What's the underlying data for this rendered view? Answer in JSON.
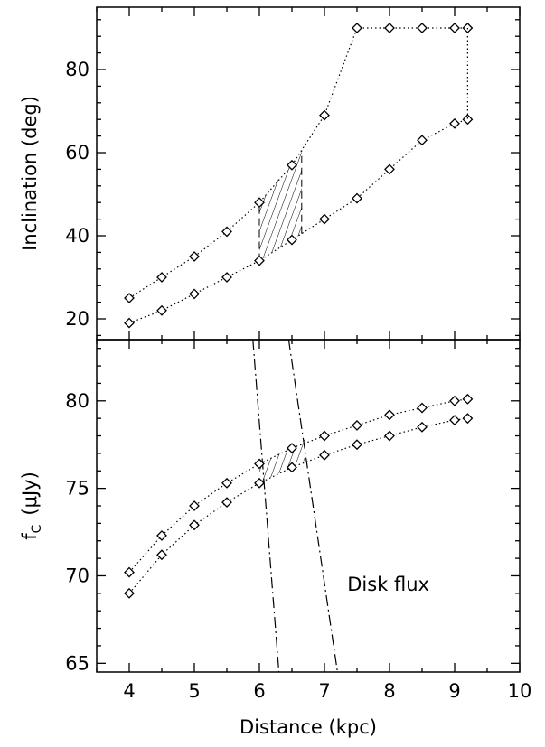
{
  "chart_data": [
    {
      "type": "line",
      "xlim": [
        3.5,
        10
      ],
      "ylim": [
        15,
        95
      ],
      "ylabel": "Inclination (deg)",
      "yticks": [
        20,
        40,
        60,
        80
      ],
      "grid": false,
      "series": [
        {
          "marker": "diamond",
          "line": "dotted",
          "x": [
            4,
            4.5,
            5,
            5.5,
            6,
            6.5,
            7,
            7.5,
            8,
            8.5,
            9,
            9.2
          ],
          "y": [
            25,
            30,
            35,
            41,
            48,
            57,
            69,
            90,
            90,
            90,
            90,
            90
          ]
        },
        {
          "marker": "diamond",
          "line": "dotted",
          "x": [
            4,
            4.5,
            5,
            5.5,
            6,
            6.5,
            7,
            7.5,
            8,
            8.5,
            9,
            9.2
          ],
          "y": [
            19,
            22,
            26,
            30,
            34,
            39,
            44,
            49,
            56,
            63,
            67,
            68
          ]
        }
      ],
      "hatched_region": {
        "x": [
          6.0,
          6.65
        ],
        "upper_y": [
          48,
          60.5
        ],
        "lower_y": [
          34,
          40.5
        ]
      }
    },
    {
      "type": "line",
      "xlim": [
        3.5,
        10
      ],
      "ylim": [
        64.5,
        83.5
      ],
      "xlabel": "Distance (kpc)",
      "ylabel": "f_C (μJy)",
      "ylabel_main": "f",
      "ylabel_sub": "C",
      "ylabel_unit": "(μJy)",
      "xticks": [
        4,
        5,
        6,
        7,
        8,
        9,
        10
      ],
      "yticks": [
        65,
        70,
        75,
        80
      ],
      "grid": false,
      "series": [
        {
          "marker": "diamond",
          "line": "dotted",
          "x": [
            4,
            4.5,
            5,
            5.5,
            6,
            6.5,
            7,
            7.5,
            8,
            8.5,
            9,
            9.2
          ],
          "y": [
            70.2,
            72.3,
            74.0,
            75.3,
            76.4,
            77.3,
            78.0,
            78.6,
            79.2,
            79.6,
            80.0,
            80.1
          ]
        },
        {
          "marker": "diamond",
          "line": "dotted",
          "x": [
            4,
            4.5,
            5,
            5.5,
            6,
            6.5,
            7,
            7.5,
            8,
            8.5,
            9,
            9.2
          ],
          "y": [
            69.0,
            71.2,
            72.9,
            74.2,
            75.3,
            76.2,
            76.9,
            77.5,
            78.0,
            78.5,
            78.9,
            79.0
          ]
        }
      ],
      "disk_flux_lines": [
        {
          "x": [
            5.9,
            6.3
          ],
          "y": [
            83.5,
            64.5
          ]
        },
        {
          "x": [
            6.45,
            7.2
          ],
          "y": [
            83.5,
            64.5
          ]
        }
      ],
      "disk_flux_label": "Disk flux",
      "hatched_region": {
        "x": [
          6.0,
          6.7
        ],
        "upper_y": [
          76.4,
          77.8
        ],
        "lower_y": [
          75.3,
          76.6
        ]
      }
    }
  ]
}
